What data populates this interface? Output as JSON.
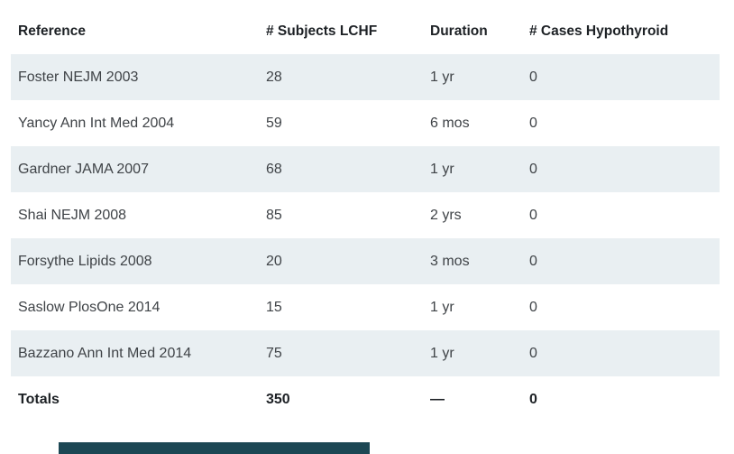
{
  "chart_data": {
    "type": "table",
    "columns": [
      "Reference",
      "# Subjects LCHF",
      "Duration",
      "# Cases Hypothyroid"
    ],
    "rows": [
      [
        "Foster NEJM 2003",
        "28",
        "1 yr",
        "0"
      ],
      [
        "Yancy Ann Int Med 2004",
        "59",
        "6 mos",
        "0"
      ],
      [
        "Gardner JAMA 2007",
        "68",
        "1 yr",
        "0"
      ],
      [
        "Shai NEJM 2008",
        "85",
        "2 yrs",
        "0"
      ],
      [
        "Forsythe Lipids 2008",
        "20",
        "3 mos",
        "0"
      ],
      [
        "Saslow PlosOne 2014",
        "15",
        "1 yr",
        "0"
      ],
      [
        "Bazzano Ann Int Med 2014",
        "75",
        "1 yr",
        "0"
      ]
    ],
    "totals": [
      "Totals",
      "350",
      "—",
      "0"
    ],
    "layout": {
      "striped_rows": "odd data rows shaded",
      "alignment": "left"
    }
  },
  "colors": {
    "background": "#ffffff",
    "row_stripe": "#e9eff2",
    "header_text": "#1d2125",
    "body_text": "#3f4347",
    "bottom_bar": "#1c4754"
  }
}
